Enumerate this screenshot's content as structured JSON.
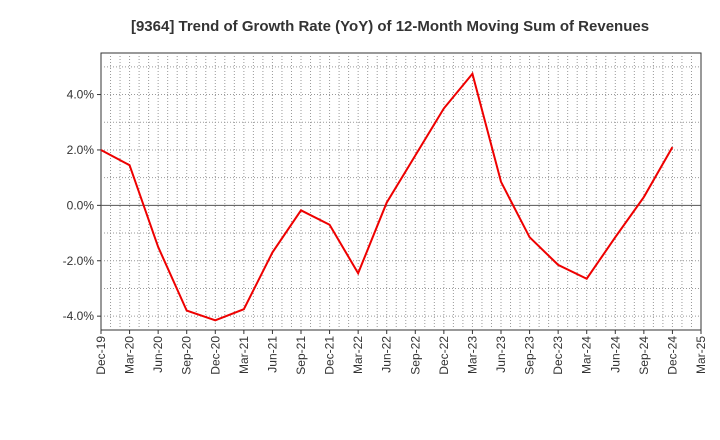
{
  "chart_data": {
    "type": "line",
    "title": "[9364]  Trend of Growth Rate (YoY) of 12-Month Moving Sum of Revenues",
    "xlabel": "",
    "ylabel": "",
    "x_tick_labels": [
      "Dec-19",
      "Mar-20",
      "Jun-20",
      "Sep-20",
      "Dec-20",
      "Mar-21",
      "Jun-21",
      "Sep-21",
      "Dec-21",
      "Mar-22",
      "Jun-22",
      "Sep-22",
      "Dec-22",
      "Mar-23",
      "Jun-23",
      "Sep-23",
      "Dec-23",
      "Mar-24",
      "Jun-24",
      "Sep-24",
      "Dec-24",
      "Mar-25"
    ],
    "y_ticks": [
      4.0,
      2.0,
      0.0,
      -2.0,
      -4.0
    ],
    "y_tick_labels": [
      "4.0%",
      "2.0%",
      "0.0%",
      "-2.0%",
      "-4.0%"
    ],
    "ylim": [
      -4.5,
      5.5
    ],
    "grid": true,
    "series": [
      {
        "color": "#ee0000",
        "x": [
          "Dec-19",
          "Mar-20",
          "Jun-20",
          "Sep-20",
          "Dec-20",
          "Mar-21",
          "Jun-21",
          "Sep-21",
          "Dec-21",
          "Mar-22",
          "Jun-22",
          "Sep-22",
          "Dec-22",
          "Mar-23",
          "Jun-23",
          "Sep-23",
          "Dec-23",
          "Mar-24",
          "Jun-24",
          "Sep-24",
          "Dec-24"
        ],
        "values": [
          2.0,
          1.45,
          -1.5,
          -3.8,
          -4.15,
          -3.75,
          -1.7,
          -0.18,
          -0.7,
          -2.45,
          0.1,
          1.8,
          3.5,
          4.75,
          0.85,
          -1.15,
          -2.15,
          -2.65,
          -1.15,
          0.3,
          2.1
        ]
      }
    ]
  }
}
